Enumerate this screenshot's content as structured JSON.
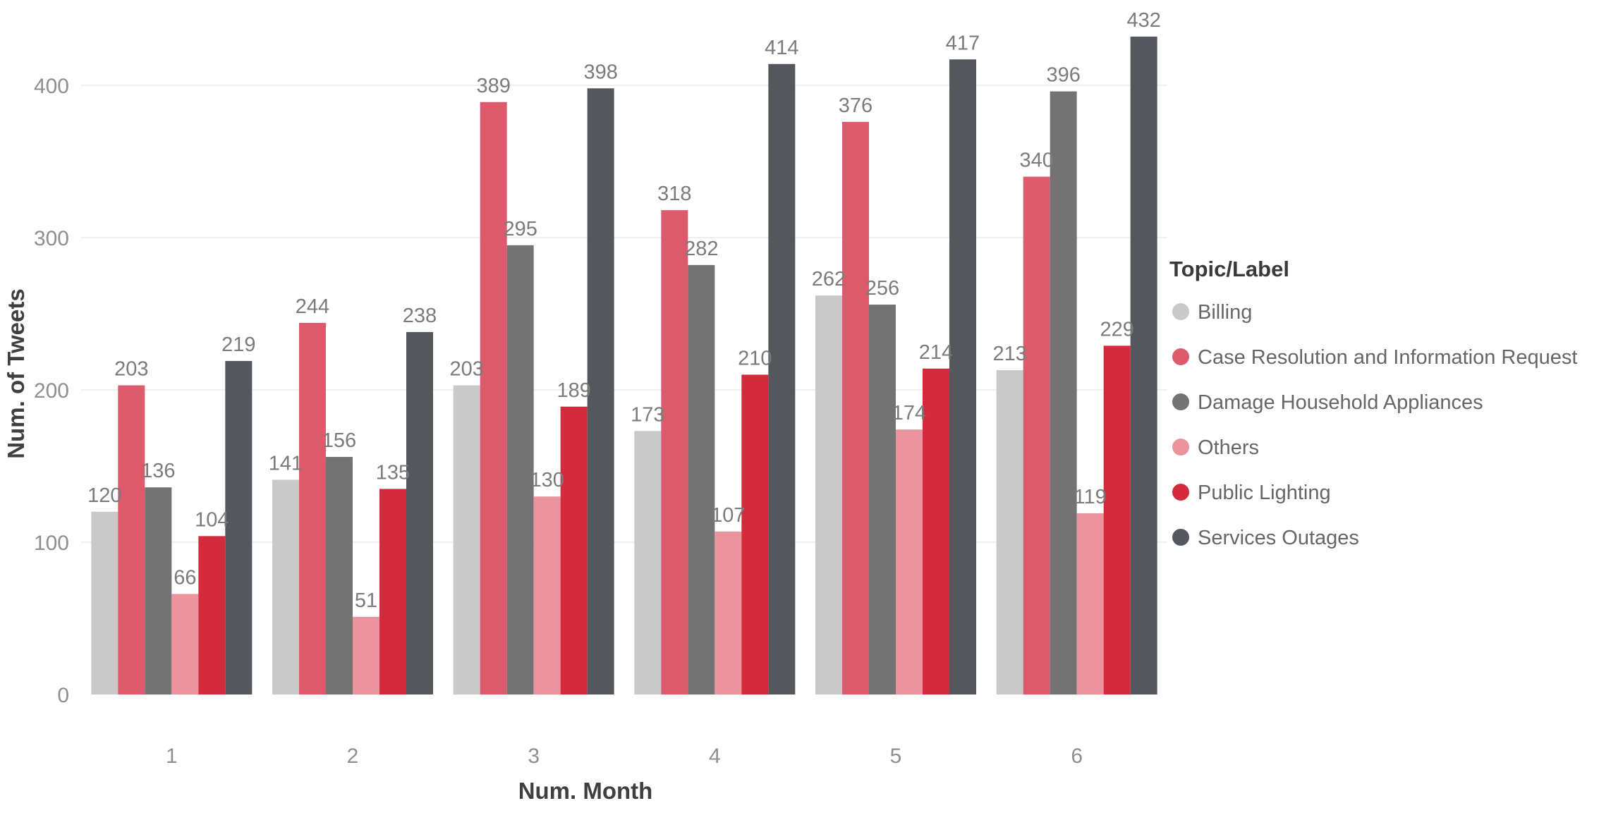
{
  "chart_data": {
    "type": "bar",
    "title": "",
    "xlabel": "Num. Month",
    "ylabel": "Num. of Tweets",
    "legend_title": "Topic/Label",
    "legend_position": "right",
    "grid": "horizontal",
    "background": "#ffffff",
    "categories": [
      "1",
      "2",
      "3",
      "4",
      "5",
      "6"
    ],
    "y_ticks": [
      0,
      100,
      200,
      300,
      400
    ],
    "ylim": [
      0,
      450
    ],
    "series": [
      {
        "name": "Billing",
        "color": "#c9c9c9",
        "values": [
          120,
          141,
          203,
          173,
          262,
          213
        ]
      },
      {
        "name": "Case Resolution and Information Request",
        "color": "#dd5a6d",
        "values": [
          203,
          244,
          389,
          318,
          376,
          340
        ]
      },
      {
        "name": "Damage Household Appliances",
        "color": "#737373",
        "values": [
          136,
          156,
          295,
          282,
          256,
          396
        ]
      },
      {
        "name": "Others",
        "color": "#eb949d",
        "values": [
          66,
          51,
          130,
          107,
          174,
          119
        ]
      },
      {
        "name": "Public Lighting",
        "color": "#d42a3d",
        "values": [
          104,
          135,
          189,
          210,
          214,
          229
        ]
      },
      {
        "name": "Services Outages",
        "color": "#54575c",
        "values": [
          219,
          238,
          398,
          414,
          417,
          432
        ]
      }
    ],
    "value_label_color": "#7b7b7b",
    "tick_label_color": "#8f8f8f"
  }
}
